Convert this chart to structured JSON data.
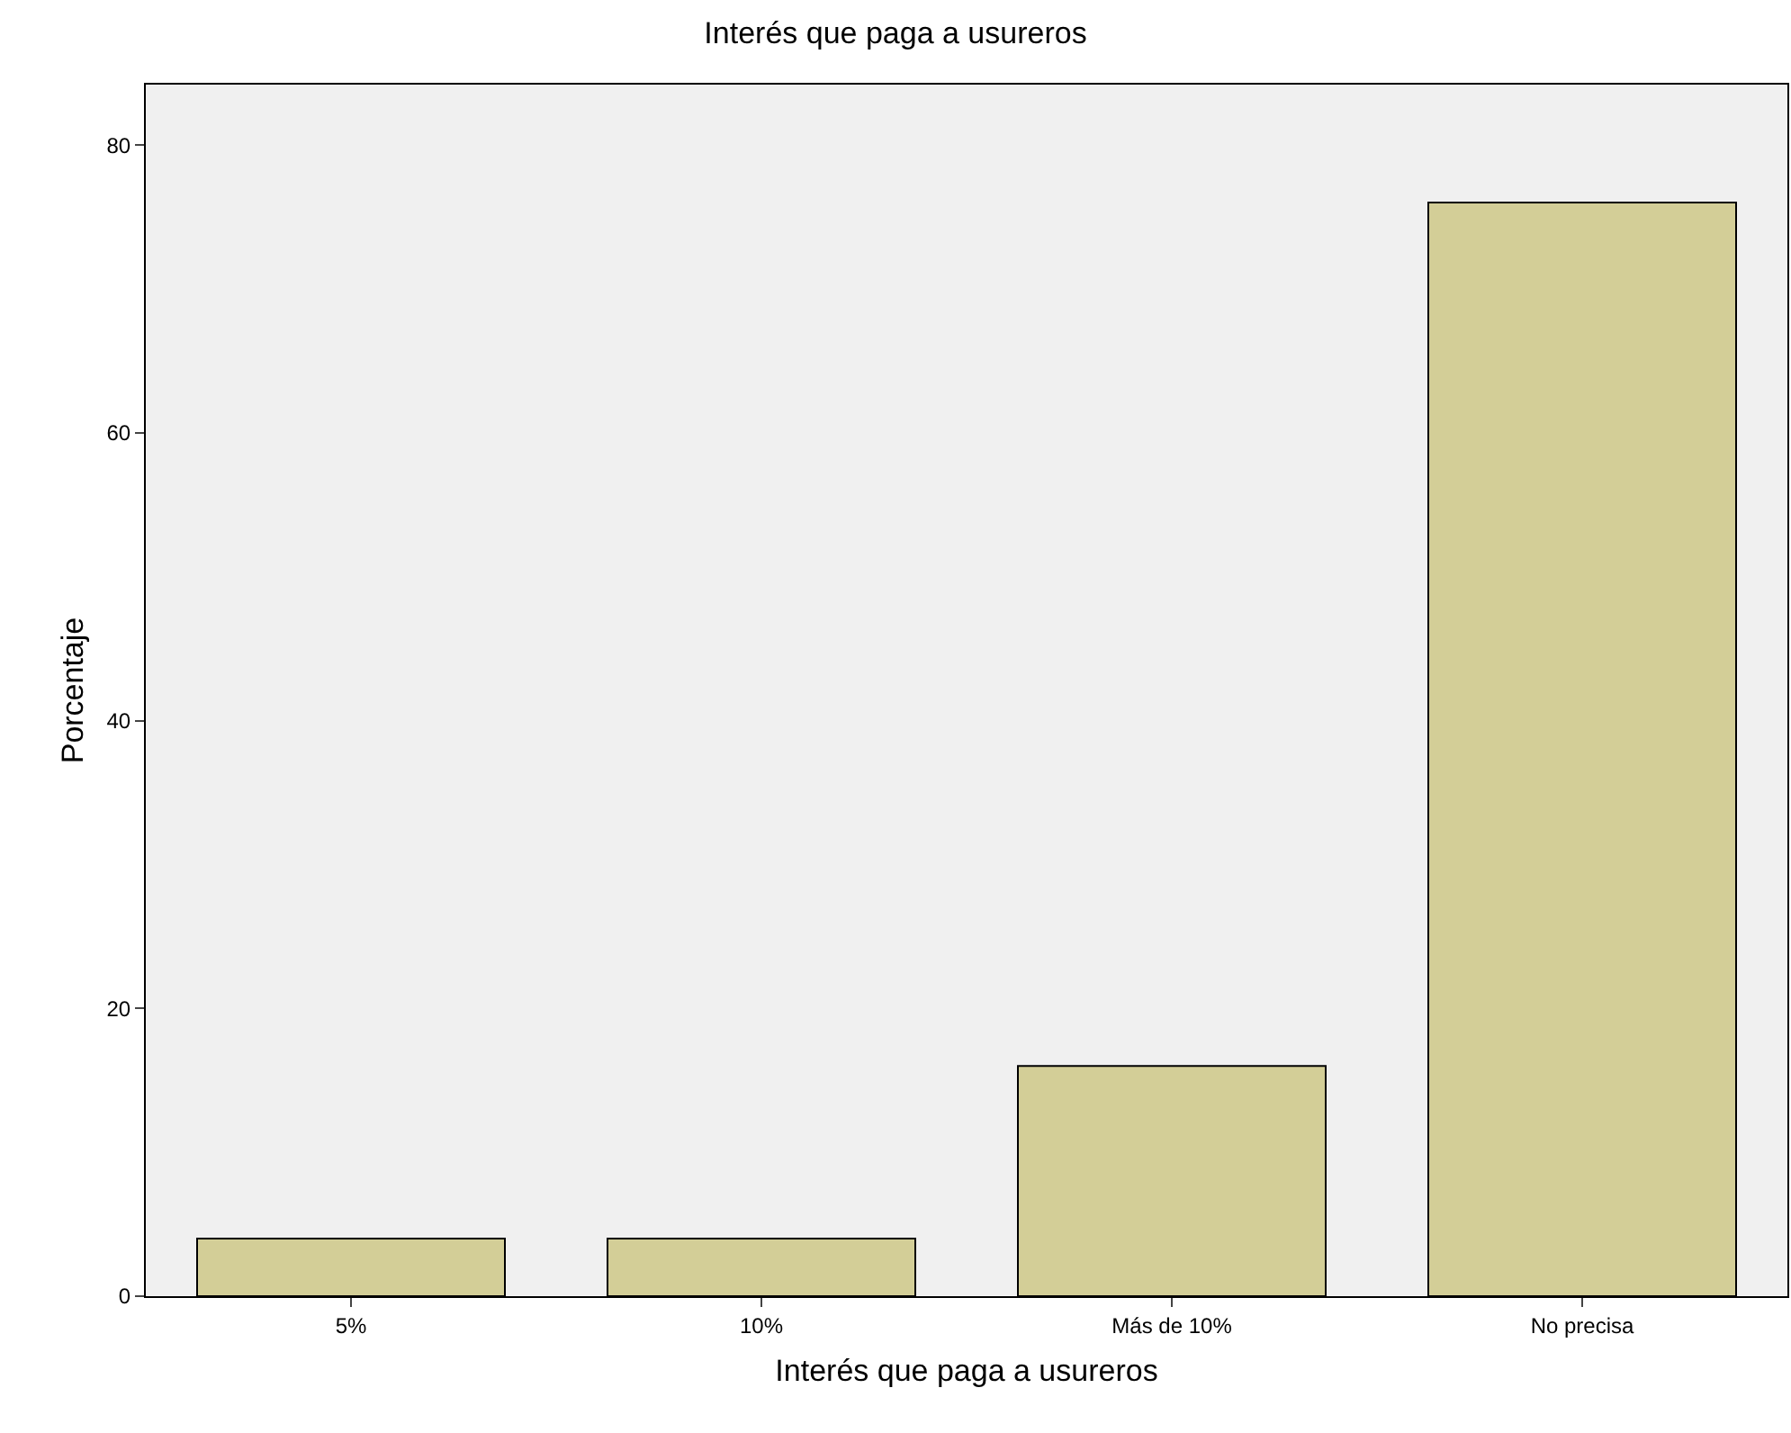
{
  "chart_data": {
    "type": "bar",
    "title": "Interés que paga a usureros",
    "xlabel": "Interés que paga a usureros",
    "ylabel": "Porcentaje",
    "categories": [
      "5%",
      "10%",
      "Más de 10%",
      "No precisa"
    ],
    "values": [
      4,
      4,
      16,
      76
    ],
    "color": "#d3ce97",
    "ylim": [
      0,
      84.2
    ],
    "yticks": [
      0,
      20,
      40,
      60,
      80
    ],
    "grid": false
  }
}
